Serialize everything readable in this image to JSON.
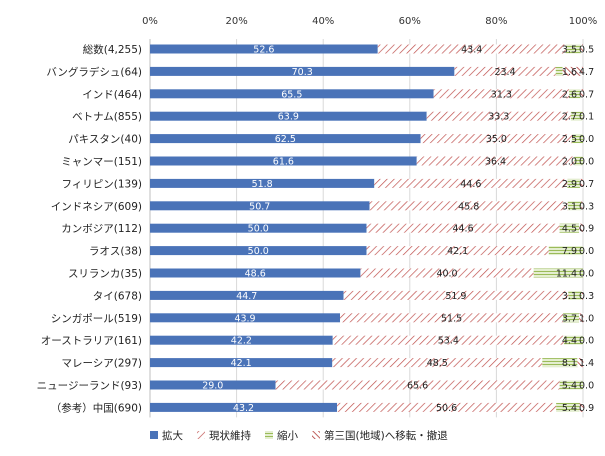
{
  "chart_data": {
    "type": "bar",
    "orientation": "horizontal",
    "stacked": true,
    "xlim": [
      0,
      100
    ],
    "x_ticks": [
      "0%",
      "20%",
      "40%",
      "60%",
      "80%",
      "100%"
    ],
    "grid": true,
    "legend_position": "bottom",
    "categories": [
      "総数(4,255)",
      "バングラデシュ(64)",
      "インド(464)",
      "ベトナム(855)",
      "パキスタン(40)",
      "ミャンマー(151)",
      "フィリピン(139)",
      "インドネシア(609)",
      "カンボジア(112)",
      "ラオス(38)",
      "スリランカ(35)",
      "タイ(678)",
      "シンガポール(519)",
      "オーストラリア(161)",
      "マレーシア(297)",
      "ニュージーランド(93)",
      "（参考）中国(690)"
    ],
    "series": [
      {
        "name": "拡大",
        "color": "#4a73b8",
        "pattern": "solid",
        "values": [
          52.6,
          70.3,
          65.5,
          63.9,
          62.5,
          61.6,
          51.8,
          50.7,
          50.0,
          50.0,
          48.6,
          44.7,
          43.9,
          42.2,
          42.1,
          29.0,
          43.2
        ],
        "labels": [
          "52.6",
          "70.3",
          "65.5",
          "63.9",
          "62.5",
          "61.6",
          "51.8",
          "50.7",
          "50.0",
          "50.0",
          "48.6",
          "44.7",
          "43.9",
          "42.2",
          "42.1",
          "29.0",
          "43.2"
        ]
      },
      {
        "name": "現状維持",
        "color": "#c0504d",
        "pattern": "hatch-red",
        "values": [
          43.4,
          23.4,
          31.3,
          33.3,
          35.0,
          36.4,
          44.6,
          45.8,
          44.6,
          42.1,
          40.0,
          51.9,
          51.5,
          53.4,
          48.5,
          65.6,
          50.6
        ],
        "labels": [
          "43.4",
          "23.4",
          "31.3",
          "33.3",
          "35.0",
          "36.4",
          "44.6",
          "45.8",
          "44.6",
          "42.1",
          "40.0",
          "51.9",
          "51.5",
          "53.4",
          "48.5",
          "65.6",
          "50.6"
        ]
      },
      {
        "name": "縮小",
        "color": "#9bbb59",
        "pattern": "lines-green",
        "values": [
          3.5,
          1.6,
          2.6,
          2.7,
          2.5,
          2.0,
          2.9,
          3.1,
          4.5,
          7.9,
          11.4,
          3.1,
          3.7,
          4.4,
          8.1,
          5.4,
          5.4
        ],
        "labels": [
          "3.5",
          "1.6",
          "2.6",
          "2.7",
          "2.5",
          "2.0",
          "2.9",
          "3.1",
          "4.5",
          "7.9",
          "11.4",
          "3.1",
          "3.7",
          "4.4",
          "8.1",
          "5.4",
          "5.4"
        ]
      },
      {
        "name": "第三国(地域)へ移転・撤退",
        "color": "#c0504d",
        "pattern": "hatch-dark",
        "values": [
          0.5,
          4.7,
          0.7,
          0.1,
          0.0,
          0.0,
          0.7,
          0.3,
          0.9,
          0.0,
          0.0,
          0.3,
          1.0,
          0.0,
          1.4,
          0.0,
          0.9
        ],
        "labels": [
          "0.5",
          "4.7",
          "0.7",
          "0.1",
          "0.0",
          "0.0",
          "0.7",
          "0.3",
          "0.9",
          "0.0",
          "0.0",
          "0.3",
          "1.0",
          "0.0",
          "1.4",
          "0.0",
          "0.9"
        ]
      }
    ]
  }
}
